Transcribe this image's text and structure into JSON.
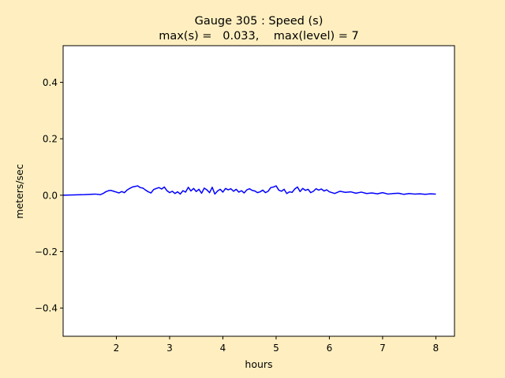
{
  "chart_data": {
    "type": "line",
    "title_line1": "Gauge 305 : Speed (s)",
    "title_line2": "max(s) =   0.033,    max(level) = 7",
    "xlabel": "hours",
    "ylabel": "meters/sec",
    "xlim": [
      1.0,
      8.35
    ],
    "ylim": [
      -0.5,
      0.53
    ],
    "xticks": [
      2,
      3,
      4,
      5,
      6,
      7,
      8
    ],
    "xtick_labels": [
      "2",
      "3",
      "4",
      "5",
      "6",
      "7",
      "8"
    ],
    "yticks": [
      -0.4,
      -0.2,
      0.0,
      0.2,
      0.4
    ],
    "ytick_labels": [
      "−0.4",
      "−0.2",
      "0.0",
      "0.2",
      "0.4"
    ],
    "grid": false,
    "series": [
      {
        "color": "#0000ff",
        "x": [
          1.0,
          1.2,
          1.4,
          1.6,
          1.7,
          1.75,
          1.8,
          1.85,
          1.9,
          1.95,
          2.0,
          2.05,
          2.1,
          2.15,
          2.2,
          2.25,
          2.3,
          2.35,
          2.4,
          2.45,
          2.5,
          2.55,
          2.6,
          2.65,
          2.7,
          2.75,
          2.8,
          2.85,
          2.9,
          2.95,
          3.0,
          3.05,
          3.1,
          3.15,
          3.2,
          3.25,
          3.3,
          3.35,
          3.4,
          3.45,
          3.5,
          3.55,
          3.6,
          3.65,
          3.7,
          3.75,
          3.8,
          3.85,
          3.9,
          3.95,
          4.0,
          4.05,
          4.1,
          4.15,
          4.2,
          4.25,
          4.3,
          4.35,
          4.4,
          4.45,
          4.5,
          4.55,
          4.6,
          4.65,
          4.7,
          4.75,
          4.8,
          4.85,
          4.9,
          4.95,
          5.0,
          5.05,
          5.1,
          5.15,
          5.2,
          5.25,
          5.3,
          5.35,
          5.4,
          5.45,
          5.5,
          5.55,
          5.6,
          5.65,
          5.7,
          5.75,
          5.8,
          5.85,
          5.9,
          5.95,
          6.0,
          6.1,
          6.2,
          6.3,
          6.4,
          6.5,
          6.6,
          6.7,
          6.8,
          6.9,
          7.0,
          7.1,
          7.2,
          7.3,
          7.4,
          7.5,
          7.6,
          7.7,
          7.8,
          7.9,
          8.0
        ],
        "y": [
          0.0,
          0.001,
          0.002,
          0.004,
          0.002,
          0.006,
          0.012,
          0.016,
          0.017,
          0.014,
          0.011,
          0.008,
          0.013,
          0.009,
          0.018,
          0.024,
          0.029,
          0.031,
          0.033,
          0.027,
          0.025,
          0.018,
          0.012,
          0.008,
          0.02,
          0.024,
          0.027,
          0.022,
          0.029,
          0.016,
          0.009,
          0.014,
          0.006,
          0.012,
          0.004,
          0.016,
          0.011,
          0.028,
          0.015,
          0.024,
          0.013,
          0.021,
          0.007,
          0.025,
          0.019,
          0.009,
          0.028,
          0.004,
          0.015,
          0.021,
          0.011,
          0.024,
          0.019,
          0.023,
          0.014,
          0.021,
          0.011,
          0.016,
          0.008,
          0.019,
          0.023,
          0.017,
          0.015,
          0.009,
          0.012,
          0.018,
          0.009,
          0.014,
          0.027,
          0.029,
          0.033,
          0.018,
          0.014,
          0.021,
          0.006,
          0.012,
          0.01,
          0.022,
          0.029,
          0.013,
          0.024,
          0.017,
          0.021,
          0.009,
          0.014,
          0.023,
          0.018,
          0.022,
          0.015,
          0.019,
          0.012,
          0.006,
          0.014,
          0.01,
          0.012,
          0.007,
          0.011,
          0.006,
          0.008,
          0.005,
          0.009,
          0.004,
          0.006,
          0.007,
          0.003,
          0.006,
          0.004,
          0.005,
          0.003,
          0.005,
          0.004
        ]
      }
    ]
  }
}
